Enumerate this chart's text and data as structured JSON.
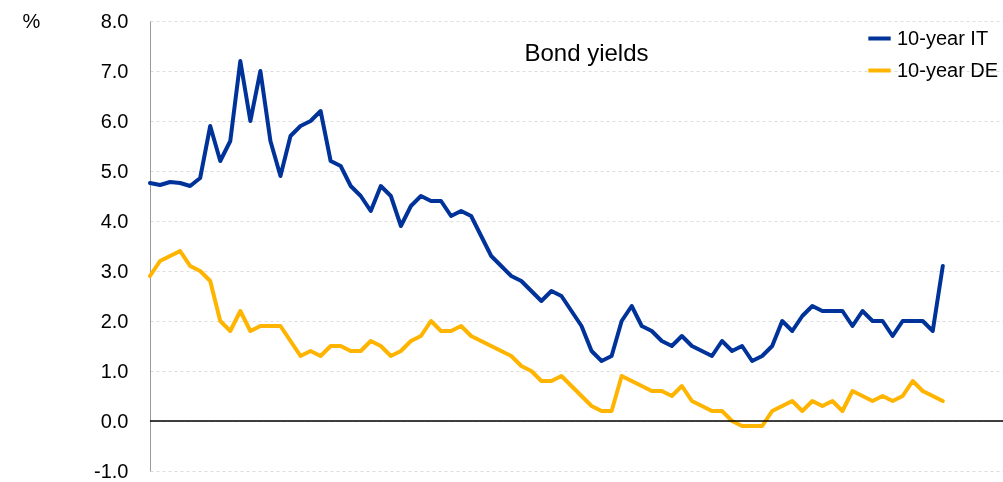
{
  "chart_data": {
    "type": "line",
    "title": "Bond yields",
    "ylabel": "%",
    "categories": [
      null,
      null,
      null,
      null,
      null,
      null,
      null,
      null,
      null,
      null,
      null,
      null,
      null,
      null,
      null,
      null,
      null,
      null,
      null,
      null,
      null,
      null,
      null,
      null,
      null,
      null,
      null,
      null,
      null,
      null,
      null,
      null,
      null,
      null,
      null,
      null,
      null,
      null,
      null,
      null,
      null,
      null,
      null,
      null,
      null,
      null,
      null,
      null,
      null,
      null,
      null,
      null,
      null,
      null,
      null,
      null,
      null,
      null,
      null,
      null,
      null,
      null,
      null,
      null,
      null,
      null,
      null,
      null,
      null,
      null,
      null,
      null,
      null,
      null,
      null,
      null,
      null,
      null,
      null,
      null,
      null,
      null,
      null,
      null,
      null,
      null
    ],
    "series": [
      {
        "name": "10-year IT",
        "color": "#003399",
        "values": [
          4.76,
          4.72,
          4.78,
          4.76,
          4.7,
          4.86,
          5.9,
          5.2,
          5.6,
          7.2,
          6.0,
          7.0,
          5.6,
          4.9,
          5.7,
          5.9,
          6.0,
          6.2,
          5.2,
          5.1,
          4.7,
          4.5,
          4.2,
          4.7,
          4.5,
          3.9,
          4.3,
          4.5,
          4.4,
          4.4,
          4.1,
          4.2,
          4.1,
          3.7,
          3.3,
          3.1,
          2.9,
          2.8,
          2.6,
          2.4,
          2.6,
          2.5,
          2.2,
          1.9,
          1.4,
          1.2,
          1.3,
          2.0,
          2.3,
          1.9,
          1.8,
          1.6,
          1.5,
          1.7,
          1.5,
          1.4,
          1.3,
          1.6,
          1.4,
          1.5,
          1.2,
          1.3,
          1.5,
          2.0,
          1.8,
          2.1,
          2.3,
          2.2,
          2.2,
          2.2,
          1.9,
          2.2,
          2.0,
          2.0,
          1.7,
          2.0,
          2.0,
          2.0,
          1.8,
          3.1,
          null,
          null,
          null,
          null,
          null,
          null
        ]
      },
      {
        "name": "10-year DE",
        "color": "#ffb400",
        "values": [
          2.9,
          3.2,
          3.3,
          3.4,
          3.1,
          3.0,
          2.8,
          2.0,
          1.8,
          2.2,
          1.8,
          1.9,
          1.9,
          1.9,
          1.6,
          1.3,
          1.4,
          1.3,
          1.5,
          1.5,
          1.4,
          1.4,
          1.6,
          1.5,
          1.3,
          1.4,
          1.6,
          1.7,
          2.0,
          1.8,
          1.8,
          1.9,
          1.7,
          1.6,
          1.5,
          1.4,
          1.3,
          1.1,
          1.0,
          0.8,
          0.8,
          0.9,
          0.7,
          0.5,
          0.3,
          0.2,
          0.2,
          0.9,
          0.8,
          0.7,
          0.6,
          0.6,
          0.5,
          0.7,
          0.4,
          0.3,
          0.2,
          0.2,
          0.0,
          -0.1,
          -0.1,
          -0.1,
          0.2,
          0.3,
          0.4,
          0.2,
          0.4,
          0.3,
          0.4,
          0.2,
          0.6,
          0.5,
          0.4,
          0.5,
          0.4,
          0.5,
          0.8,
          0.6,
          0.5,
          0.4,
          null,
          null,
          null,
          null,
          null,
          null
        ]
      }
    ],
    "ylim": [
      -1,
      8
    ],
    "yticks": [
      {
        "value": -1,
        "label": "-1.0"
      },
      {
        "value": 0,
        "label": "0.0"
      },
      {
        "value": 1,
        "label": "1.0"
      },
      {
        "value": 2,
        "label": "2.0"
      },
      {
        "value": 3,
        "label": "3.0"
      },
      {
        "value": 4,
        "label": "4.0"
      },
      {
        "value": 5,
        "label": "5.0"
      },
      {
        "value": 6,
        "label": "6.0"
      },
      {
        "value": 7,
        "label": "7.0"
      },
      {
        "value": 8,
        "label": "8.0"
      }
    ],
    "ref_lines": [
      {
        "axis": "y",
        "value": 0,
        "color": "#000000"
      }
    ],
    "grid": "y",
    "legend": "top right",
    "line_style": "solid"
  }
}
